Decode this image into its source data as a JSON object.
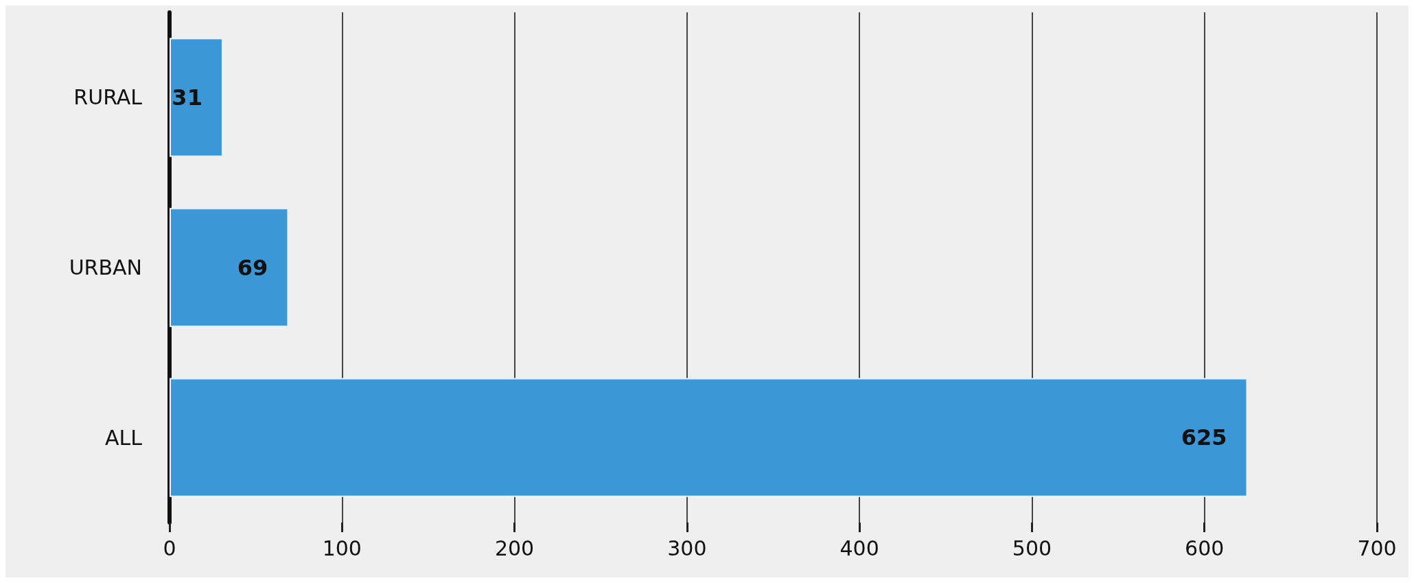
{
  "chart_data": {
    "type": "bar",
    "orientation": "horizontal",
    "categories": [
      "RURAL",
      "URBAN",
      "ALL"
    ],
    "values": [
      31,
      69,
      625
    ],
    "color": "#3b97d6",
    "xlim": [
      0,
      700
    ],
    "xticks": [
      0,
      100,
      200,
      300,
      400,
      500,
      600,
      700
    ],
    "grid": "x",
    "data_labels": true
  }
}
